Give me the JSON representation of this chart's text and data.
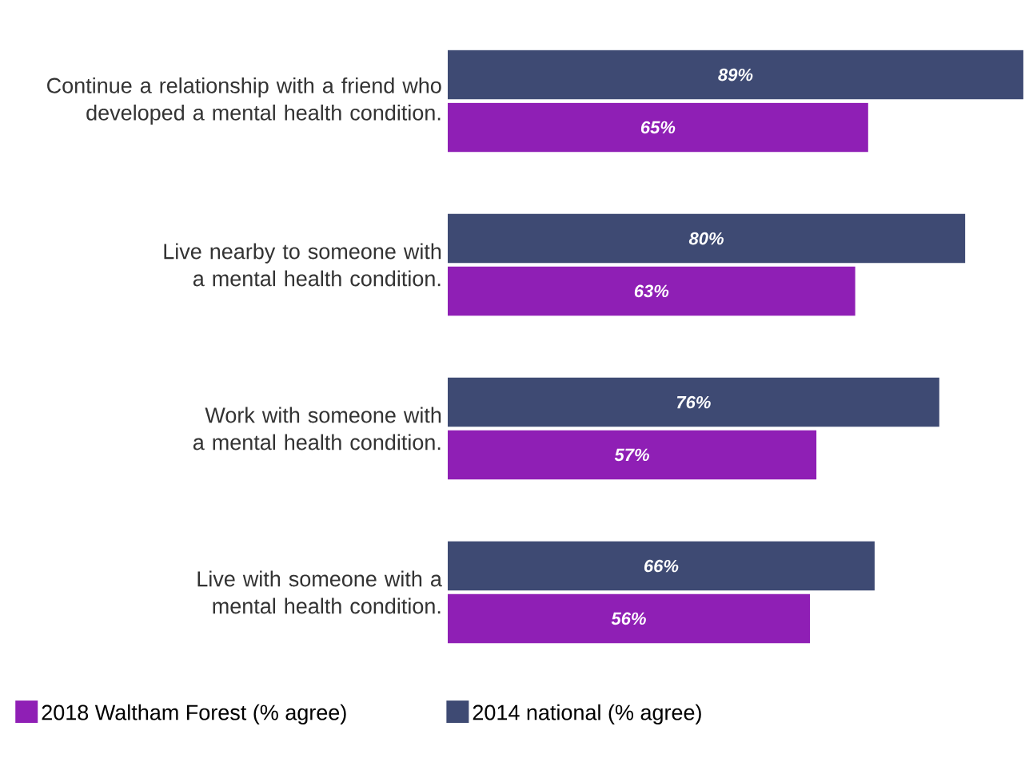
{
  "chart_data": {
    "type": "bar",
    "orientation": "horizontal",
    "legend": "bottom",
    "categories": [
      "Continue a relationship with a friend who developed a mental health condition.",
      "Live nearby to someone with a mental health condition.",
      "Work with someone with a mental health condition.",
      "Live with someone with a mental health condition."
    ],
    "series": [
      {
        "name": "2018 Waltham Forest (% agree)",
        "color": "#8f1fb5",
        "values": [
          65,
          63,
          57,
          56
        ],
        "value_labels": [
          "65%",
          "63%",
          "57%",
          "56%"
        ]
      },
      {
        "name": "2014 national (% agree)",
        "color": "#3e4a73",
        "values": [
          89,
          80,
          76,
          66
        ],
        "value_labels": [
          "89%",
          "80%",
          "76%",
          "66%"
        ]
      }
    ]
  }
}
